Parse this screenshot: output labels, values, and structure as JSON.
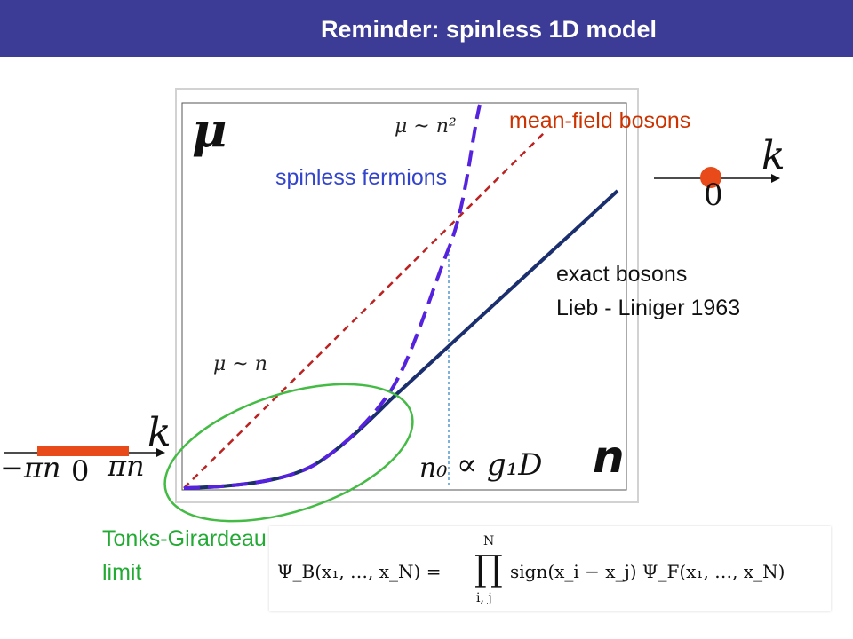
{
  "title": "Reminder:  spinless 1D model",
  "labels": {
    "mean_field": "mean-field bosons",
    "spinless_fermions": "spinless fermions",
    "exact_bosons_line1": "exact bosons",
    "exact_bosons_line2": "Lieb - Liniger 1963",
    "tonks_line1": "Tonks-Girardeau",
    "tonks_line2": "limit",
    "axis_mu": "μ",
    "axis_n": "n",
    "mu_n2": "μ ~ n²",
    "mu_n": "μ ~ n",
    "n0": "n₀",
    "propto_g1d": "∝ g₁D",
    "k_right": "k",
    "zero_right": "0",
    "k_left": "k",
    "minus_pin": "−πn",
    "zero_left": "0",
    "pin": "πn"
  },
  "formula": {
    "lhs": "Ψ_B(x₁, …, x_N) =",
    "product_top": "N",
    "product_symbol": "∏",
    "product_bottom": "i, j",
    "rhs": "sign(x_i − x_j) Ψ_F(x₁, …, x_N)"
  },
  "colors": {
    "title_bar": "#3c3b95",
    "exact_bosons": "#1b2f6e",
    "spinless_fermions": "#5522dd",
    "mean_field": "#bb2222",
    "tonks_ellipse": "#44bb44",
    "condensate_marker": "#e84a1a",
    "n0_line": "#5599cc"
  }
}
